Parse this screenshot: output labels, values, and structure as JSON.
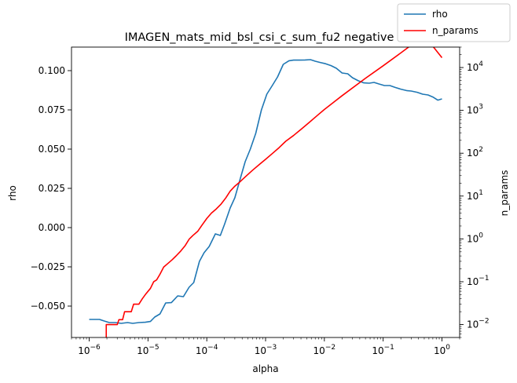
{
  "chart_data": {
    "type": "line",
    "title": "IMAGEN_mats_mid_bsl_csi_c_sum_fu2 negative",
    "xlabel": "alpha",
    "ylabel": "rho",
    "y2label": "n_params",
    "xscale": "log",
    "x_ticks": [
      {
        "value": 1e-06,
        "base": "10",
        "exp": "−6"
      },
      {
        "value": 1e-05,
        "base": "10",
        "exp": "−5"
      },
      {
        "value": 0.0001,
        "base": "10",
        "exp": "−4"
      },
      {
        "value": 0.001,
        "base": "10",
        "exp": "−3"
      },
      {
        "value": 0.01,
        "base": "10",
        "exp": "−2"
      },
      {
        "value": 0.1,
        "base": "10",
        "exp": "−1"
      },
      {
        "value": 1,
        "base": "10",
        "exp": "0"
      }
    ],
    "ylim": [
      -0.07,
      0.115
    ],
    "y_ticks": [
      {
        "value": -0.05,
        "label": "−0.050"
      },
      {
        "value": -0.025,
        "label": "−0.025"
      },
      {
        "value": 0.0,
        "label": "0.000"
      },
      {
        "value": 0.025,
        "label": "0.025"
      },
      {
        "value": 0.05,
        "label": "0.050"
      },
      {
        "value": 0.075,
        "label": "0.075"
      },
      {
        "value": 0.1,
        "label": "0.100"
      }
    ],
    "y2scale": "log",
    "y2lim": [
      0.005,
      30000
    ],
    "y2_ticks": [
      {
        "value": 0.01,
        "base": "10",
        "exp": "−2"
      },
      {
        "value": 0.1,
        "base": "10",
        "exp": "−1"
      },
      {
        "value": 1,
        "base": "10",
        "exp": "0"
      },
      {
        "value": 10,
        "base": "10",
        "exp": "1"
      },
      {
        "value": 100,
        "base": "10",
        "exp": "2"
      },
      {
        "value": 1000,
        "base": "10",
        "exp": "3"
      },
      {
        "value": 10000,
        "base": "10",
        "exp": "4"
      }
    ],
    "legend": {
      "placement": "top-right"
    },
    "series": [
      {
        "name": "rho",
        "axis": "left",
        "color": "#1f77b4",
        "points": [
          [
            1e-06,
            -0.0585
          ],
          [
            1.5e-06,
            -0.0585
          ],
          [
            1.8e-06,
            -0.0595
          ],
          [
            2.2e-06,
            -0.0605
          ],
          [
            2.8e-06,
            -0.0605
          ],
          [
            3.5e-06,
            -0.061
          ],
          [
            4.5e-06,
            -0.0605
          ],
          [
            5.5e-06,
            -0.061
          ],
          [
            7e-06,
            -0.0605
          ],
          [
            9e-06,
            -0.0603
          ],
          [
            1.1e-05,
            -0.0598
          ],
          [
            1.3e-05,
            -0.057
          ],
          [
            1.6e-05,
            -0.055
          ],
          [
            2e-05,
            -0.048
          ],
          [
            2.5e-05,
            -0.0478
          ],
          [
            3.2e-05,
            -0.0435
          ],
          [
            4e-05,
            -0.044
          ],
          [
            5e-05,
            -0.038
          ],
          [
            6e-05,
            -0.035
          ],
          [
            7.5e-05,
            -0.0215
          ],
          [
            9e-05,
            -0.016
          ],
          [
            0.00011,
            -0.012
          ],
          [
            0.00014,
            -0.004
          ],
          [
            0.00017,
            -0.005
          ],
          [
            0.0002,
            0.002
          ],
          [
            0.00025,
            0.0125
          ],
          [
            0.0003,
            0.019
          ],
          [
            0.00037,
            0.031
          ],
          [
            0.00045,
            0.042
          ],
          [
            0.00055,
            0.05
          ],
          [
            0.00068,
            0.06
          ],
          [
            0.00085,
            0.075
          ],
          [
            0.00105,
            0.085
          ],
          [
            0.0013,
            0.0905
          ],
          [
            0.0016,
            0.096
          ],
          [
            0.002,
            0.104
          ],
          [
            0.0025,
            0.1063
          ],
          [
            0.003,
            0.1067
          ],
          [
            0.0038,
            0.1067
          ],
          [
            0.0047,
            0.1068
          ],
          [
            0.0058,
            0.107
          ],
          [
            0.007,
            0.106
          ],
          [
            0.0085,
            0.1052
          ],
          [
            0.0105,
            0.1044
          ],
          [
            0.013,
            0.1032
          ],
          [
            0.016,
            0.1015
          ],
          [
            0.02,
            0.0985
          ],
          [
            0.025,
            0.098
          ],
          [
            0.03,
            0.0955
          ],
          [
            0.038,
            0.0935
          ],
          [
            0.047,
            0.0922
          ],
          [
            0.058,
            0.092
          ],
          [
            0.07,
            0.0925
          ],
          [
            0.085,
            0.0915
          ],
          [
            0.105,
            0.0905
          ],
          [
            0.13,
            0.0905
          ],
          [
            0.16,
            0.0893
          ],
          [
            0.2,
            0.0882
          ],
          [
            0.25,
            0.0873
          ],
          [
            0.3,
            0.087
          ],
          [
            0.38,
            0.0862
          ],
          [
            0.47,
            0.085
          ],
          [
            0.58,
            0.0845
          ],
          [
            0.7,
            0.0832
          ],
          [
            0.85,
            0.0812
          ],
          [
            1.0,
            0.082
          ]
        ]
      },
      {
        "name": "n_params",
        "axis": "right",
        "color": "#ff0000",
        "points": [
          [
            1.95e-06,
            0.005
          ],
          [
            1.95e-06,
            0.01
          ],
          [
            2.1e-06,
            0.01
          ],
          [
            2.8e-06,
            0.01
          ],
          [
            3e-06,
            0.01
          ],
          [
            3.2e-06,
            0.013
          ],
          [
            3.7e-06,
            0.013
          ],
          [
            4e-06,
            0.02
          ],
          [
            4.6e-06,
            0.02
          ],
          [
            5.2e-06,
            0.02
          ],
          [
            5.7e-06,
            0.03
          ],
          [
            6.2e-06,
            0.03
          ],
          [
            7e-06,
            0.03
          ],
          [
            8e-06,
            0.04
          ],
          [
            9e-06,
            0.05
          ],
          [
            1.1e-05,
            0.07
          ],
          [
            1.25e-05,
            0.1
          ],
          [
            1.4e-05,
            0.11
          ],
          [
            1.6e-05,
            0.15
          ],
          [
            1.85e-05,
            0.22
          ],
          [
            2.2e-05,
            0.27
          ],
          [
            2.6e-05,
            0.33
          ],
          [
            3e-05,
            0.4
          ],
          [
            3.6e-05,
            0.52
          ],
          [
            4.3e-05,
            0.7
          ],
          [
            5e-05,
            0.98
          ],
          [
            5.8e-05,
            1.2
          ],
          [
            7e-05,
            1.5
          ],
          [
            8.3e-05,
            2.1
          ],
          [
            0.0001,
            3.0
          ],
          [
            0.00012,
            4.0
          ],
          [
            0.000145,
            5.0
          ],
          [
            0.000175,
            6.5
          ],
          [
            0.00021,
            9.0
          ],
          [
            0.00025,
            13
          ],
          [
            0.0003,
            17
          ],
          [
            0.00036,
            21
          ],
          [
            0.00045,
            28
          ],
          [
            0.0006,
            40
          ],
          [
            0.0008,
            56
          ],
          [
            0.001,
            72
          ],
          [
            0.0013,
            98
          ],
          [
            0.0017,
            135
          ],
          [
            0.0022,
            190
          ],
          [
            0.003,
            260
          ],
          [
            0.004,
            360
          ],
          [
            0.0055,
            520
          ],
          [
            0.0075,
            750
          ],
          [
            0.01,
            1050
          ],
          [
            0.02,
            2200
          ],
          [
            0.05,
            5600
          ],
          [
            0.1,
            11000
          ],
          [
            0.2,
            22000
          ],
          [
            0.5,
            56000
          ],
          [
            1.0,
            17000
          ]
        ]
      }
    ]
  }
}
